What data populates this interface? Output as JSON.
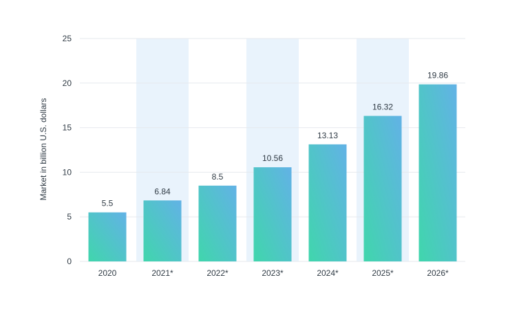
{
  "chart_data": {
    "type": "bar",
    "title": "",
    "xlabel": "",
    "ylabel": "Market in billion U.S. dollars",
    "categories": [
      "2020",
      "2021*",
      "2022*",
      "2023*",
      "2024*",
      "2025*",
      "2026*"
    ],
    "values": [
      5.5,
      6.84,
      8.5,
      10.56,
      13.13,
      16.32,
      19.86
    ],
    "value_labels": [
      "5.5",
      "6.84",
      "8.5",
      "10.56",
      "13.13",
      "16.32",
      "19.86"
    ],
    "ylim": [
      0,
      25
    ],
    "yticks": [
      0,
      5,
      10,
      15,
      20,
      25
    ],
    "grid": true,
    "legend": "none",
    "shaded_band_categories": [
      "2021*",
      "2023*",
      "2025*"
    ],
    "colors": {
      "bar_gradient_bottom": "#40d6ac",
      "bar_gradient_top": "#62b2e6",
      "band": "#e9f3fc",
      "grid": "#e6e9ee",
      "text": "#2f3a44"
    }
  }
}
